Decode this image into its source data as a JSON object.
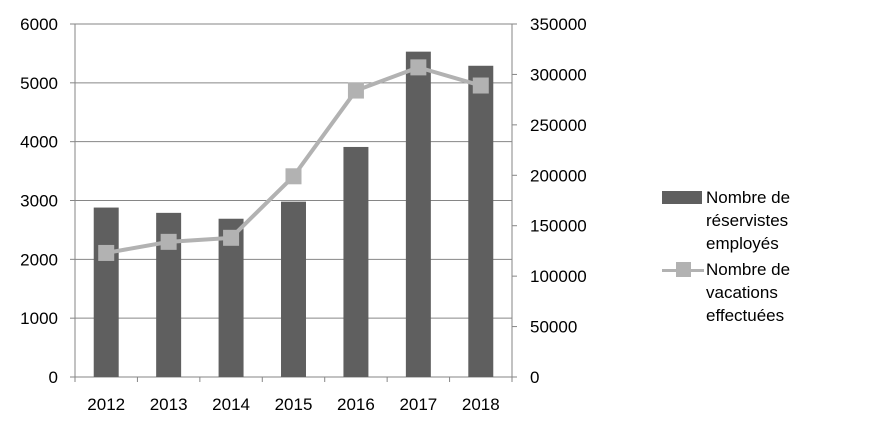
{
  "chart_data": {
    "type": "bar",
    "categories": [
      "2012",
      "2013",
      "2014",
      "2015",
      "2016",
      "2017",
      "2018"
    ],
    "series": [
      {
        "name": "Nombre de réservistes employés",
        "type": "bar",
        "axis": "left",
        "color": "#5f5f5f",
        "values": [
          2880,
          2790,
          2690,
          2980,
          3910,
          5530,
          5290
        ]
      },
      {
        "name": "Nombre de vacations effectuées",
        "type": "line",
        "axis": "right",
        "color": "#b2b2b2",
        "marker": "square",
        "values": [
          123000,
          134000,
          138000,
          199000,
          284000,
          307000,
          289000
        ]
      }
    ],
    "y_left": {
      "min": 0,
      "max": 6000,
      "ticks": [
        "0",
        "1000",
        "2000",
        "3000",
        "4000",
        "5000",
        "6000"
      ]
    },
    "y_right": {
      "min": 0,
      "max": 350000,
      "ticks": [
        "0",
        "50000",
        "100000",
        "150000",
        "200000",
        "250000",
        "300000",
        "350000"
      ]
    },
    "grid": true,
    "legend_position": "right"
  },
  "legend": {
    "bar_lines": [
      "Nombre de",
      "réservistes",
      "employés"
    ],
    "line_lines": [
      "Nombre de",
      "vacations",
      "effectuées"
    ]
  }
}
